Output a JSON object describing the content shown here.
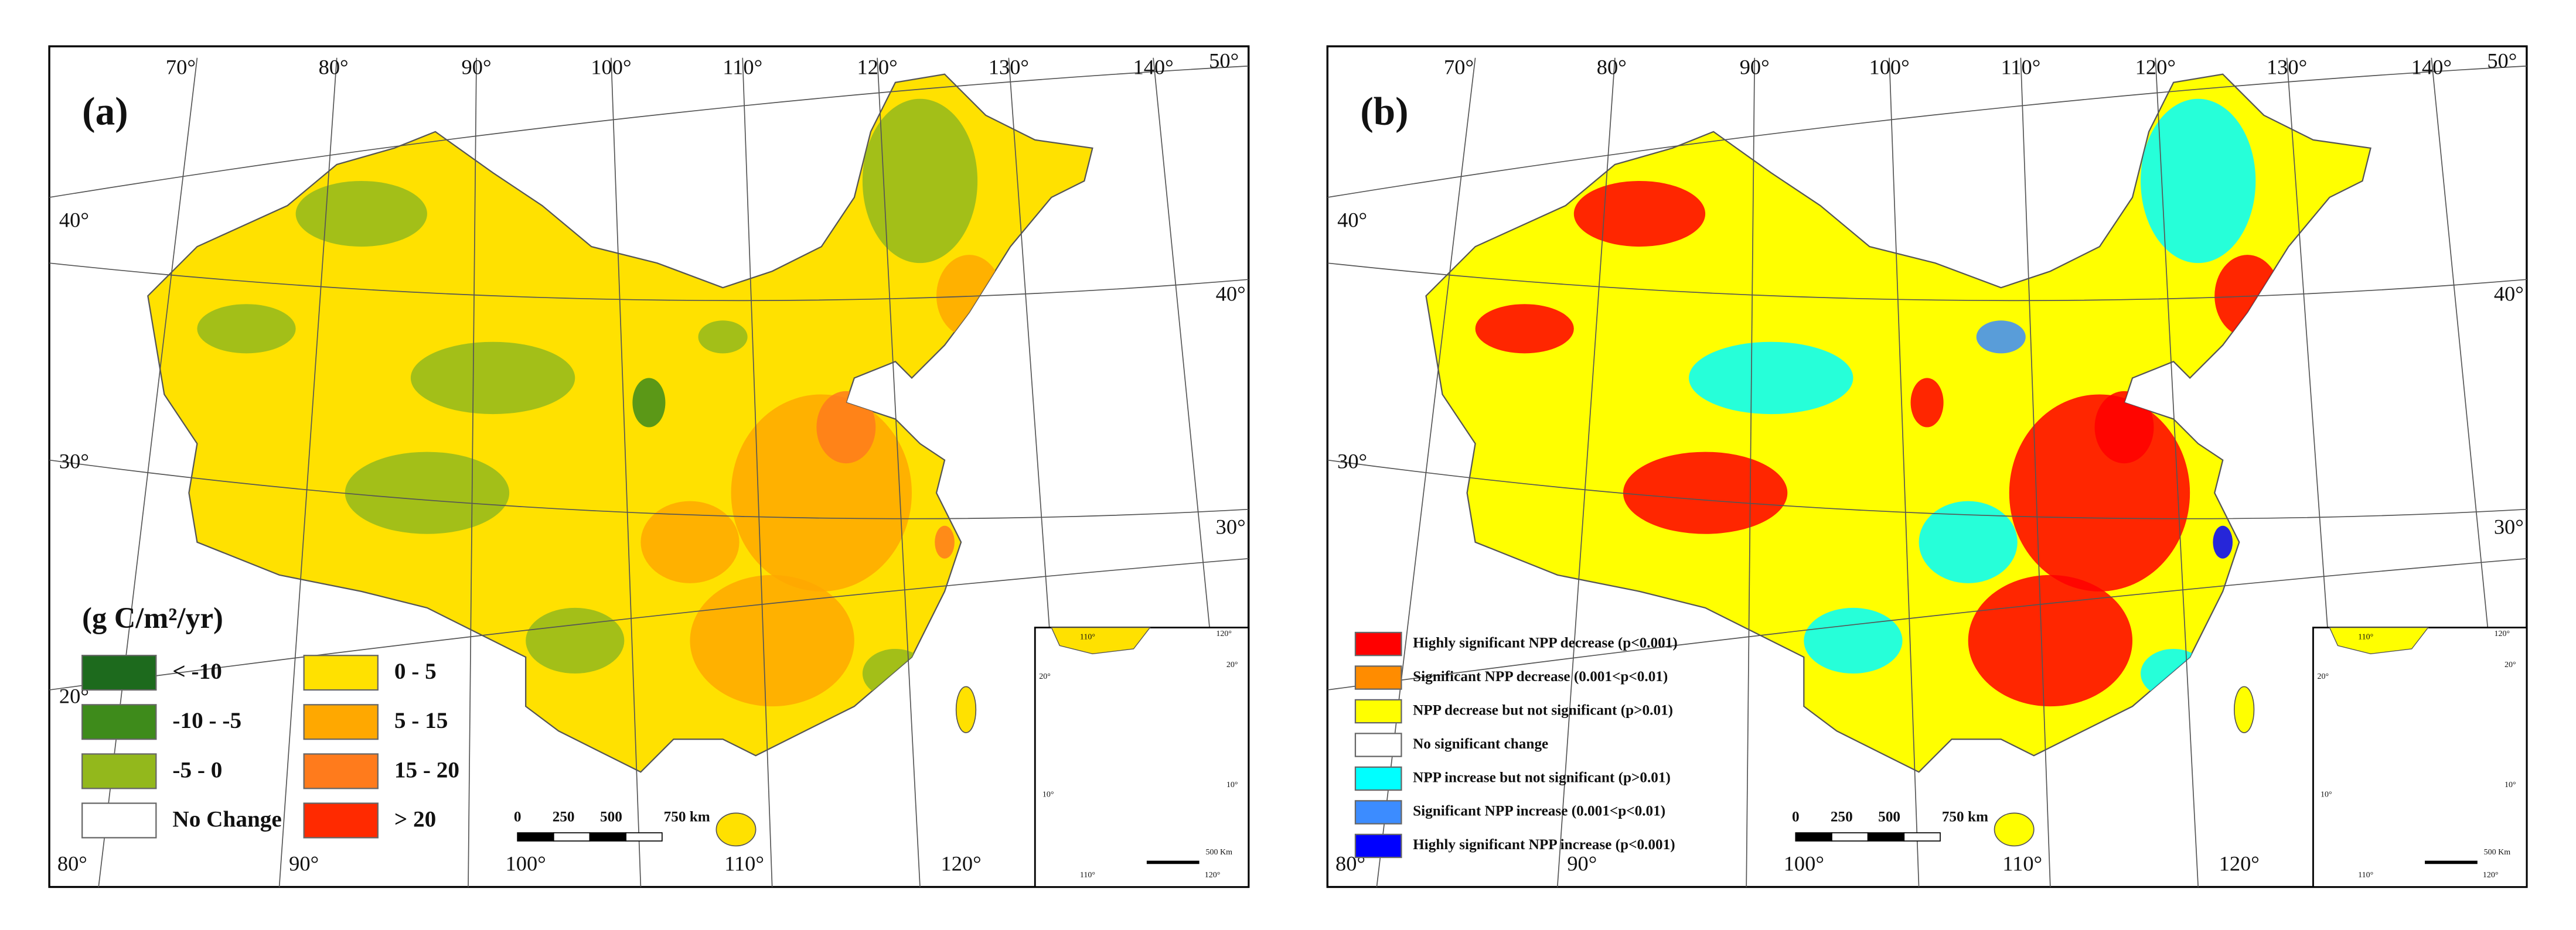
{
  "panels": [
    {
      "label": "(a)",
      "legend_title": "(g C/m²/yr)",
      "legend": [
        {
          "label": "< -10",
          "color": "#1d6a1d"
        },
        {
          "label": "-10 - -5",
          "color": "#3e8b1b"
        },
        {
          "label": "-5 - 0",
          "color": "#93b81c"
        },
        {
          "label": "No Change",
          "color": "#ffffff"
        },
        {
          "label": "0 - 5",
          "color": "#ffe100"
        },
        {
          "label": "5 - 15",
          "color": "#ffa800"
        },
        {
          "label": "15 - 20",
          "color": "#ff7b1c"
        },
        {
          "label": "> 20",
          "color": "#ff2a00"
        }
      ],
      "scale": [
        "0",
        "250",
        "500",
        "750 km"
      ],
      "top_labels": [
        "70°",
        "80°",
        "90°",
        "100°",
        "110°",
        "120°",
        "130°",
        "140°",
        "50°"
      ],
      "left_labels": [
        "40°",
        "30°",
        "20°"
      ],
      "right_labels": [
        "40°",
        "30°"
      ],
      "bottom_labels": [
        "80°",
        "90°",
        "100°",
        "110°",
        "120°"
      ],
      "inset_labels": [
        "110°",
        "120°",
        "20°",
        "20°",
        "10°",
        "10°",
        "110°",
        "120°",
        "500 Km"
      ]
    },
    {
      "label": "(b)",
      "legend": [
        {
          "label": "Highly significant NPP decrease (p<0.001)",
          "color": "#ff0000"
        },
        {
          "label": "Significant NPP decrease (0.001<p<0.01)",
          "color": "#ff8c00"
        },
        {
          "label": "NPP decrease but not significant (p>0.01)",
          "color": "#ffff00"
        },
        {
          "label": "No significant change",
          "color": "#ffffff"
        },
        {
          "label": "NPP increase but not significant (p>0.01)",
          "color": "#00ffff"
        },
        {
          "label": "Significant NPP increase (0.001<p<0.01)",
          "color": "#3c8cff"
        },
        {
          "label": "Highly significant NPP increase (p<0.001)",
          "color": "#0000ff"
        }
      ],
      "scale": [
        "0",
        "250",
        "500",
        "750 km"
      ],
      "top_labels": [
        "70°",
        "80°",
        "90°",
        "100°",
        "110°",
        "120°",
        "130°",
        "140°",
        "50°"
      ],
      "left_labels": [
        "40°",
        "30°"
      ],
      "right_labels": [
        "40°",
        "30°"
      ],
      "bottom_labels": [
        "80°",
        "90°",
        "100°",
        "110°",
        "120°"
      ],
      "inset_labels": [
        "110°",
        "120°",
        "20°",
        "20°",
        "10°",
        "10°",
        "110°",
        "120°",
        "500 Km"
      ]
    }
  ]
}
